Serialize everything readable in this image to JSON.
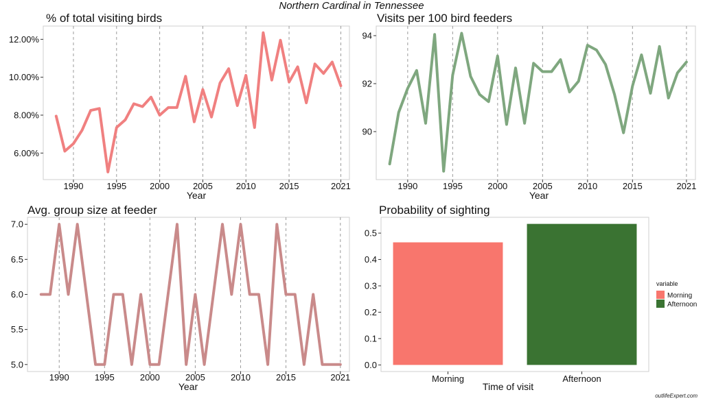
{
  "title": "Northern Cardinal in Tennessee",
  "watermark": "outlifeExpert.com",
  "chart_data": [
    {
      "type": "line",
      "title": "% of total visiting birds",
      "xlabel": "Year",
      "ylabel": "",
      "color": "#f08080",
      "xlim": [
        1986.5,
        2022
      ],
      "ylim": [
        4.6,
        12.7
      ],
      "x_ticks": [
        1990,
        1995,
        2000,
        2005,
        2010,
        2015,
        2021
      ],
      "y_ticks": [
        6,
        8,
        10,
        12
      ],
      "y_tick_labels": [
        "6.00%",
        "8.00%",
        "10.00%",
        "12.00%"
      ],
      "x": [
        1988,
        1989,
        1990,
        1991,
        1992,
        1993,
        1994,
        1995,
        1996,
        1997,
        1998,
        1999,
        2000,
        2001,
        2002,
        2003,
        2004,
        2005,
        2006,
        2007,
        2008,
        2009,
        2010,
        2011,
        2012,
        2013,
        2014,
        2015,
        2016,
        2017,
        2018,
        2019,
        2020,
        2021
      ],
      "values": [
        7.95,
        6.1,
        6.5,
        7.2,
        8.25,
        8.35,
        5.0,
        7.35,
        7.75,
        8.6,
        8.45,
        8.95,
        8.0,
        8.4,
        8.4,
        10.05,
        7.65,
        9.35,
        7.9,
        9.7,
        10.45,
        8.5,
        10.1,
        7.35,
        12.35,
        9.85,
        11.95,
        9.75,
        10.55,
        8.65,
        10.7,
        10.2,
        10.8,
        9.55
      ]
    },
    {
      "type": "line",
      "title": "Visits per 100 bird feeders",
      "xlabel": "Year",
      "ylabel": "",
      "color": "#7fa77f",
      "xlim": [
        1986.5,
        2022
      ],
      "ylim": [
        88.0,
        94.4
      ],
      "x_ticks": [
        1990,
        1995,
        2000,
        2005,
        2010,
        2015,
        2021
      ],
      "y_ticks": [
        90,
        92,
        94
      ],
      "y_tick_labels": [
        "90",
        "92",
        "94"
      ],
      "x": [
        1988,
        1989,
        1990,
        1991,
        1992,
        1993,
        1994,
        1995,
        1996,
        1997,
        1998,
        1999,
        2000,
        2001,
        2002,
        2003,
        2004,
        2005,
        2006,
        2007,
        2008,
        2009,
        2010,
        2011,
        2012,
        2013,
        2014,
        2015,
        2016,
        2017,
        2018,
        2019,
        2020,
        2021
      ],
      "values": [
        88.65,
        90.8,
        91.8,
        92.55,
        90.35,
        94.05,
        88.35,
        92.35,
        94.1,
        92.3,
        91.55,
        91.25,
        93.15,
        90.3,
        92.65,
        90.35,
        92.85,
        92.5,
        92.5,
        93.0,
        91.65,
        92.1,
        93.6,
        93.4,
        92.8,
        91.55,
        89.95,
        91.9,
        93.2,
        91.6,
        93.55,
        91.4,
        92.45,
        92.9
      ]
    },
    {
      "type": "line",
      "title": "Avg. group size at feeder",
      "xlabel": "Year",
      "ylabel": "",
      "color": "#c98a8a",
      "xlim": [
        1986.5,
        2022
      ],
      "ylim": [
        4.9,
        7.1
      ],
      "x_ticks": [
        1990,
        1995,
        2000,
        2005,
        2010,
        2015,
        2021
      ],
      "y_ticks": [
        5.0,
        5.5,
        6.0,
        6.5,
        7.0
      ],
      "y_tick_labels": [
        "5.0",
        "5.5",
        "6.0",
        "6.5",
        "7.0"
      ],
      "x": [
        1988,
        1989,
        1990,
        1991,
        1992,
        1993,
        1994,
        1995,
        1996,
        1997,
        1998,
        1999,
        2000,
        2001,
        2002,
        2003,
        2004,
        2005,
        2006,
        2007,
        2008,
        2009,
        2010,
        2011,
        2012,
        2013,
        2014,
        2015,
        2016,
        2017,
        2018,
        2019,
        2020,
        2021
      ],
      "values": [
        6,
        6,
        7,
        6,
        7,
        6,
        5,
        5,
        6,
        6,
        5,
        6,
        5,
        5,
        6,
        7,
        5,
        6,
        5,
        6,
        7,
        6,
        7,
        6,
        6,
        5,
        7,
        6,
        6,
        5,
        6,
        5,
        5,
        5
      ]
    },
    {
      "type": "bar",
      "title": "Probability of sighting",
      "xlabel": "Time of visit",
      "ylabel": "",
      "categories": [
        "Morning",
        "Afternoon"
      ],
      "values": [
        0.465,
        0.535
      ],
      "colors": [
        "#f8766d",
        "#3a7332"
      ],
      "ylim": [
        -0.025,
        0.56
      ],
      "y_ticks": [
        0.0,
        0.1,
        0.2,
        0.3,
        0.4,
        0.5
      ],
      "y_tick_labels": [
        "0.0",
        "0.1",
        "0.2",
        "0.3",
        "0.4",
        "0.5"
      ],
      "legend": {
        "title": "variable",
        "placement": "right",
        "items": [
          {
            "label": "Morning",
            "color": "#f8766d"
          },
          {
            "label": "Afternoon",
            "color": "#3a7332"
          }
        ]
      }
    }
  ]
}
